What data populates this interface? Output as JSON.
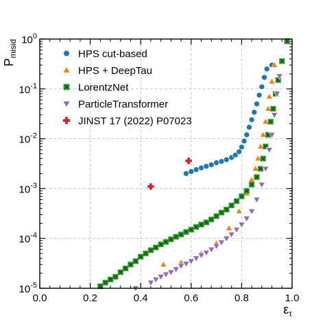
{
  "chart_data": {
    "type": "scatter",
    "xlabel_main": "ε",
    "xlabel_sub": "τ",
    "ylabel_main": "P",
    "ylabel_sub": "misid",
    "xlim": [
      0.0,
      1.0
    ],
    "ylim": [
      1e-05,
      1
    ],
    "yscale": "log",
    "grid": true,
    "legend_position": "top-left",
    "x_ticks": [
      "0.0",
      "0.2",
      "0.4",
      "0.6",
      "0.8",
      "1.0"
    ],
    "y_ticks": [
      {
        "base": "10",
        "exp": "0"
      },
      {
        "base": "10",
        "exp": "-1"
      },
      {
        "base": "10",
        "exp": "-2"
      },
      {
        "base": "10",
        "exp": "-3"
      },
      {
        "base": "10",
        "exp": "-4"
      },
      {
        "base": "10",
        "exp": "-5"
      }
    ],
    "series": [
      {
        "name": "HPS cut-based",
        "color": "#1f77b4",
        "marker": "circle",
        "x": [
          0.58,
          0.6,
          0.62,
          0.64,
          0.66,
          0.68,
          0.7,
          0.72,
          0.74,
          0.76,
          0.775,
          0.79,
          0.8,
          0.81,
          0.82,
          0.83,
          0.84,
          0.85,
          0.86,
          0.87,
          0.88,
          0.89,
          0.9,
          0.92
        ],
        "y": [
          0.002,
          0.0022,
          0.0024,
          0.0026,
          0.0028,
          0.003,
          0.0033,
          0.0035,
          0.0038,
          0.0042,
          0.0047,
          0.0055,
          0.0068,
          0.009,
          0.012,
          0.017,
          0.024,
          0.034,
          0.05,
          0.075,
          0.11,
          0.17,
          0.25,
          0.3
        ]
      },
      {
        "name": "HPS + DeepTau",
        "color": "#ff7f0e",
        "marker": "triangle-up",
        "x": [
          0.49,
          0.56,
          0.64,
          0.7,
          0.75,
          0.79,
          0.82,
          0.84,
          0.855,
          0.865,
          0.875,
          0.885,
          0.895,
          0.905,
          0.91,
          0.92,
          0.93
        ],
        "y": [
          3e-05,
          3.3e-05,
          5e-05,
          8e-05,
          0.00016,
          0.00035,
          0.0008,
          0.0015,
          0.0025,
          0.004,
          0.007,
          0.012,
          0.022,
          0.04,
          0.07,
          0.14,
          0.3
        ]
      },
      {
        "name": "LorentzNet",
        "color": "#2ca02c",
        "marker": "square-x",
        "x": [
          0.24,
          0.26,
          0.28,
          0.3,
          0.32,
          0.34,
          0.36,
          0.38,
          0.4,
          0.42,
          0.44,
          0.46,
          0.48,
          0.5,
          0.52,
          0.54,
          0.56,
          0.58,
          0.6,
          0.62,
          0.64,
          0.66,
          0.68,
          0.7,
          0.72,
          0.74,
          0.76,
          0.78,
          0.8,
          0.82,
          0.84,
          0.86,
          0.875,
          0.885,
          0.895,
          0.905,
          0.915,
          0.925,
          0.935,
          0.945,
          0.96,
          0.98
        ],
        "y": [
          1.1e-05,
          1.3e-05,
          1.5e-05,
          1.7e-05,
          2.1e-05,
          2.5e-05,
          3e-05,
          3.5e-05,
          4.3e-05,
          5e-05,
          5.8e-05,
          6.6e-05,
          7.6e-05,
          8.5e-05,
          9.6e-05,
          0.000108,
          0.00012,
          0.000135,
          0.00015,
          0.00017,
          0.00019,
          0.00021,
          0.00024,
          0.00028,
          0.00033,
          0.00038,
          0.00046,
          0.00056,
          0.0007,
          0.0009,
          0.0012,
          0.0017,
          0.0025,
          0.004,
          0.007,
          0.012,
          0.022,
          0.04,
          0.08,
          0.15,
          0.36,
          0.9
        ]
      },
      {
        "name": "ParticleTransformer",
        "color": "#9467bd",
        "marker": "triangle-down",
        "x": [
          0.38,
          0.44,
          0.46,
          0.48,
          0.5,
          0.52,
          0.54,
          0.56,
          0.58,
          0.6,
          0.62,
          0.64,
          0.66,
          0.68,
          0.7,
          0.72,
          0.74,
          0.76,
          0.78,
          0.8,
          0.82,
          0.84,
          0.86,
          0.88,
          0.895,
          0.91,
          0.92,
          0.93,
          0.94,
          0.95
        ],
        "y": [
          1e-05,
          1.3e-05,
          1.5e-05,
          1.7e-05,
          1.9e-05,
          2.1e-05,
          2.4e-05,
          2.8e-05,
          3.1e-05,
          3.5e-05,
          4e-05,
          4.6e-05,
          5.2e-05,
          6e-05,
          7e-05,
          8.3e-05,
          0.0001,
          0.00012,
          0.00015,
          0.00019,
          0.00025,
          0.00035,
          0.0006,
          0.0012,
          0.0025,
          0.006,
          0.012,
          0.03,
          0.08,
          0.18
        ]
      },
      {
        "name": "JINST 17 (2022) P07023",
        "color": "#d62728",
        "marker": "plus",
        "x": [
          0.44,
          0.59
        ],
        "y": [
          0.0011,
          0.0036
        ]
      }
    ]
  }
}
